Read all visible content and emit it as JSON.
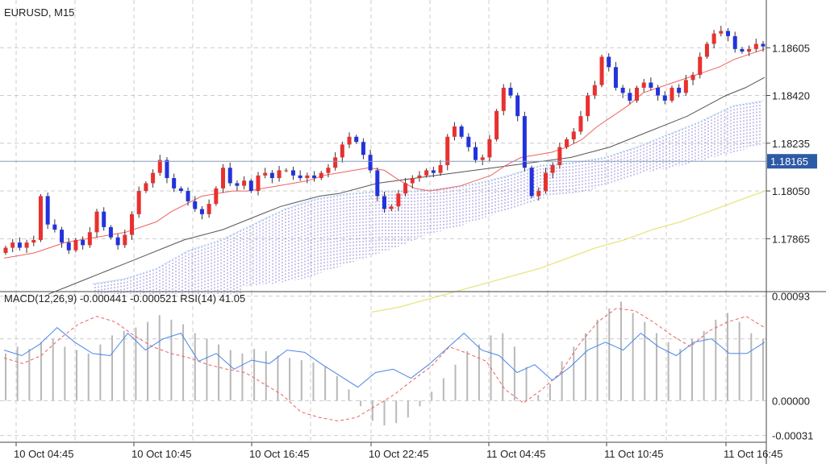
{
  "header": {
    "symbol_title": "EURUSD, M15"
  },
  "indicator_header": {
    "text": "MACD(12,26,9) -0.000441 -0.000521 RSI(14) 41.05"
  },
  "current_price": {
    "label": "1.18165",
    "value": 1.18165
  },
  "colors": {
    "bull_candle": "#e8312f",
    "bear_candle": "#2233dd",
    "ma_fast": "#f06060",
    "ma_mid": "#555555",
    "ma_slow": "#e6e680",
    "cloud": "#6b5fd0",
    "macd_line": "#4a86e8",
    "signal_line": "#f06060",
    "histogram": "#b8b8b8",
    "price_badge": "#2d5aa6",
    "grid": "#cccccc"
  },
  "chart_data": {
    "type": "candlestick",
    "price_axis": {
      "ticks": [
        {
          "value": 1.18605,
          "label": "1.18605"
        },
        {
          "value": 1.1842,
          "label": "1.18420"
        },
        {
          "value": 1.18235,
          "label": "1.18235"
        },
        {
          "value": 1.1805,
          "label": "1.18050"
        },
        {
          "value": 1.17865,
          "label": "1.17865"
        }
      ],
      "range": [
        1.1766,
        1.1879
      ]
    },
    "indicator_axis": {
      "ticks": [
        {
          "value": 0.00093,
          "label": "0.00093"
        },
        {
          "value": 0.0,
          "label": "0.00000"
        },
        {
          "value": -0.00031,
          "label": "-0.00031"
        }
      ],
      "range": [
        -0.00037,
        0.00097
      ]
    },
    "time_axis": {
      "labels": [
        "10 Oct 04:45",
        "10 Oct 10:45",
        "10 Oct 16:45",
        "10 Oct 22:45",
        "11 Oct 04:45",
        "11 Oct 10:45",
        "11 Oct 16:45"
      ]
    },
    "closes": [
      1.1783,
      1.1785,
      1.1783,
      1.1785,
      1.1786,
      1.1803,
      1.1792,
      1.179,
      1.1785,
      1.1782,
      1.1786,
      1.1784,
      1.1789,
      1.1797,
      1.1791,
      1.1787,
      1.1784,
      1.1788,
      1.1796,
      1.1805,
      1.1808,
      1.1812,
      1.1817,
      1.181,
      1.1806,
      1.1805,
      1.1801,
      1.1798,
      1.1796,
      1.18,
      1.1806,
      1.1814,
      1.1808,
      1.1807,
      1.1809,
      1.1805,
      1.1811,
      1.1812,
      1.181,
      1.1813,
      1.1813,
      1.1811,
      1.181,
      1.1811,
      1.181,
      1.1812,
      1.1814,
      1.1818,
      1.1823,
      1.1826,
      1.1824,
      1.1819,
      1.1813,
      1.1803,
      1.1798,
      1.1799,
      1.1804,
      1.1808,
      1.181,
      1.1811,
      1.1813,
      1.1812,
      1.1815,
      1.1826,
      1.183,
      1.1826,
      1.1822,
      1.1817,
      1.1818,
      1.1825,
      1.1836,
      1.1845,
      1.1842,
      1.1834,
      1.1814,
      1.1803,
      1.1805,
      1.1812,
      1.1815,
      1.1822,
      1.1825,
      1.1828,
      1.1834,
      1.1842,
      1.1846,
      1.1857,
      1.1853,
      1.1845,
      1.1843,
      1.184,
      1.1845,
      1.1847,
      1.1845,
      1.1842,
      1.184,
      1.1845,
      1.1843,
      1.1848,
      1.185,
      1.1857,
      1.1862,
      1.1866,
      1.1867,
      1.1865,
      1.186,
      1.1859,
      1.186,
      1.1862,
      1.1861
    ],
    "ma_fast": [
      1.1779,
      1.178,
      1.1781,
      1.1783,
      1.1785,
      1.1786,
      1.1787,
      1.1788,
      1.1789,
      1.1791,
      1.1793,
      1.1797,
      1.18,
      1.1803,
      1.1804,
      1.1805,
      1.1805,
      1.1806,
      1.1807,
      1.1808,
      1.1809,
      1.1811,
      1.1812,
      1.1813,
      1.1814,
      1.1813,
      1.1809,
      1.1806,
      1.1805,
      1.1806,
      1.1807,
      1.1809,
      1.1811,
      1.1815,
      1.1818,
      1.1819,
      1.182,
      1.1822,
      1.1825,
      1.183,
      1.1834,
      1.1838,
      1.1843,
      1.1845,
      1.1847,
      1.1849,
      1.1851,
      1.1853,
      1.1856,
      1.1858,
      1.186
    ],
    "ma_mid": [
      1.1765,
      1.1768,
      1.1771,
      1.1774,
      1.1777,
      1.178,
      1.1783,
      1.1786,
      1.1788,
      1.179,
      1.1793,
      1.1796,
      1.1799,
      1.1801,
      1.1803,
      1.1804,
      1.1806,
      1.1808,
      1.1809,
      1.181,
      1.1811,
      1.1812,
      1.1813,
      1.1814,
      1.1815,
      1.1816,
      1.1817,
      1.1818,
      1.182,
      1.1822,
      1.1825,
      1.1828,
      1.1831,
      1.1834,
      1.1838,
      1.1842,
      1.1845,
      1.1849
    ],
    "ma_slow": [
      1.1758,
      1.176,
      1.1763,
      1.1766,
      1.1769,
      1.1772,
      1.1775,
      1.1779,
      1.1783,
      1.1786,
      1.179,
      1.1793,
      1.1797,
      1.1801,
      1.1805
    ],
    "cloud_top": [
      1.1769,
      1.1771,
      1.1775,
      1.1782,
      1.1786,
      1.1792,
      1.1798,
      1.1802,
      1.1804,
      1.1805,
      1.1805,
      1.1806,
      1.1808,
      1.1811,
      1.1815,
      1.1816,
      1.1818,
      1.1822,
      1.1827,
      1.1832,
      1.1838,
      1.184
    ],
    "cloud_bottom": [
      1.1768,
      1.1769,
      1.1771,
      1.1775,
      1.1779,
      1.1783,
      1.1788,
      1.1791,
      1.1795,
      1.1799,
      1.1803,
      1.1804,
      1.1808,
      1.1812,
      1.1814,
      1.1817,
      1.182,
      1.1823
    ],
    "macd_line": [
      0.00045,
      0.0004,
      0.0005,
      0.00065,
      0.00052,
      0.00042,
      0.0004,
      0.0006,
      0.00045,
      0.00055,
      0.0006,
      0.00035,
      0.00042,
      0.00028,
      0.00036,
      0.00033,
      0.00045,
      0.00043,
      0.00032,
      0.00022,
      0.00012,
      0.00025,
      0.00028,
      0.0002,
      0.00032,
      0.00046,
      0.0006,
      0.00045,
      0.0004,
      0.00025,
      0.00032,
      0.00018,
      0.0003,
      0.00045,
      0.00052,
      0.00045,
      0.0006,
      0.00048,
      0.0004,
      0.00052,
      0.00055,
      0.00042,
      0.00042,
      0.00052
    ],
    "signal_line": [
      0.00038,
      0.00033,
      0.0004,
      0.00055,
      0.00068,
      0.00075,
      0.0007,
      0.00058,
      0.00048,
      0.00042,
      0.00038,
      0.00032,
      0.00028,
      0.00025,
      0.00015,
      5e-05,
      -0.0001,
      -0.00015,
      -0.00018,
      -0.00015,
      -5e-05,
      5e-05,
      0.00018,
      0.0003,
      0.00048,
      0.00042,
      0.00035,
      0.0001,
      -2e-05,
      0.0001,
      0.00025,
      0.0005,
      0.0007,
      0.00082,
      0.0008,
      0.0007,
      0.00058,
      0.00048,
      0.00062,
      0.0007,
      0.00075,
      0.00065
    ],
    "histogram": [
      0.00042,
      0.00048,
      0.00046,
      0.00052,
      0.00055,
      0.00048,
      0.00045,
      0.00042,
      0.0005,
      0.00058,
      0.00062,
      0.00065,
      0.0007,
      0.00076,
      0.00072,
      0.00068,
      0.0006,
      0.00055,
      0.0005,
      0.00045,
      0.00042,
      0.00046,
      0.00044,
      0.0004,
      0.00038,
      0.00036,
      0.00034,
      0.0003,
      0.00022,
      0.0001,
      -5e-05,
      -0.00018,
      -0.00022,
      -0.0002,
      -0.00015,
      -5e-05,
      8e-05,
      0.0002,
      0.00032,
      0.00044,
      0.0005,
      0.00058,
      0.0006,
      0.00048,
      0.0003,
      5e-05,
      0.00015,
      0.00035,
      0.00048,
      0.0006,
      0.00072,
      0.00082,
      0.00088,
      0.00078,
      0.0007,
      0.0006,
      0.00052,
      0.00046,
      0.00055,
      0.00062,
      0.00072,
      0.00078,
      0.0007,
      0.0006,
      0.00055
    ]
  }
}
